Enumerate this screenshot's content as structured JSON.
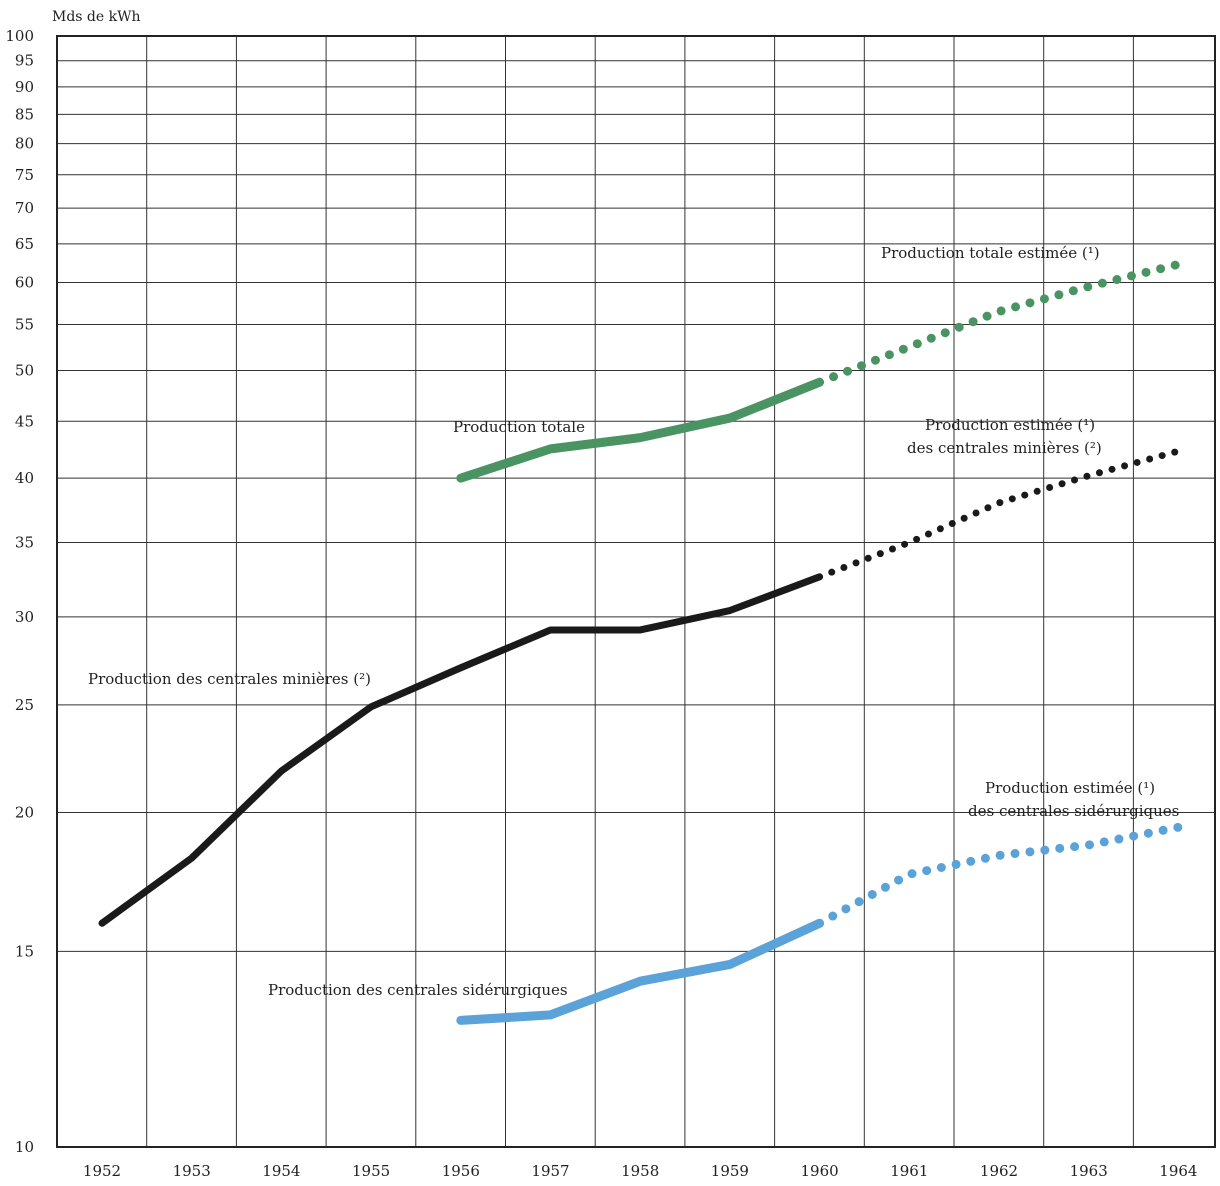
{
  "chart_data": {
    "type": "line",
    "y_scale": "log",
    "ylim": [
      10,
      100
    ],
    "xlim": [
      1952,
      1964
    ],
    "unit_label": "Mds de kWh",
    "y_ticks": [
      10,
      15,
      20,
      25,
      30,
      35,
      40,
      45,
      50,
      55,
      60,
      65,
      70,
      75,
      80,
      85,
      90,
      95,
      100
    ],
    "x_ticks": [
      "1952",
      "1953",
      "1954",
      "1955",
      "1956",
      "1957",
      "1958",
      "1959",
      "1960",
      "1961",
      "1962",
      "1963",
      "1964"
    ],
    "grid": true,
    "series": [
      {
        "name": "Production totale",
        "color": "#4a9464",
        "style": "solid",
        "points": [
          [
            1956,
            40.0
          ],
          [
            1957,
            42.5
          ],
          [
            1958,
            43.5
          ],
          [
            1959,
            45.3
          ],
          [
            1960,
            48.8
          ]
        ]
      },
      {
        "name": "Production totale estimée (1)",
        "color": "#4a9464",
        "style": "dotted",
        "points": [
          [
            1960,
            48.8
          ],
          [
            1961,
            52.5
          ],
          [
            1962,
            56.5
          ],
          [
            1963,
            59.5
          ],
          [
            1964,
            62.3
          ]
        ]
      },
      {
        "name": "Production des centrales minières (2)",
        "color": "#1a1a1a",
        "style": "solid",
        "points": [
          [
            1952,
            15.9
          ],
          [
            1953,
            18.2
          ],
          [
            1954,
            21.8
          ],
          [
            1955,
            24.9
          ],
          [
            1956,
            27.0
          ],
          [
            1957,
            29.2
          ],
          [
            1958,
            29.2
          ],
          [
            1959,
            30.4
          ],
          [
            1960,
            32.6
          ]
        ]
      },
      {
        "name": "Production estimée (1) des centrales minières (2)",
        "color": "#1a1a1a",
        "style": "dotted",
        "points": [
          [
            1960,
            32.6
          ],
          [
            1961,
            35.0
          ],
          [
            1962,
            38.0
          ],
          [
            1963,
            40.2
          ],
          [
            1964,
            42.3
          ]
        ]
      },
      {
        "name": "Production des centrales sidérurgiques",
        "color": "#5aa2d8",
        "style": "solid",
        "points": [
          [
            1956,
            13.0
          ],
          [
            1957,
            13.15
          ],
          [
            1958,
            14.1
          ],
          [
            1959,
            14.6
          ],
          [
            1960,
            15.9
          ]
        ]
      },
      {
        "name": "Production estimée (1) des centrales sidérurgiques",
        "color": "#5aa2d8",
        "style": "dotted",
        "points": [
          [
            1960,
            15.9
          ],
          [
            1961,
            17.6
          ],
          [
            1962,
            18.3
          ],
          [
            1963,
            18.7
          ],
          [
            1964,
            19.4
          ]
        ]
      }
    ],
    "annotations": [
      {
        "text": "Production totale"
      },
      {
        "text": "Production totale estimée (¹)"
      },
      {
        "text": "Production estimée (¹)"
      },
      {
        "text": "des centrales minières (²)"
      },
      {
        "text": "Production des centrales minières (²)"
      },
      {
        "text": "Production estimée (¹)"
      },
      {
        "text": "des centrales sidérurgiques"
      },
      {
        "text": "Production des centrales sidérurgiques"
      }
    ]
  }
}
